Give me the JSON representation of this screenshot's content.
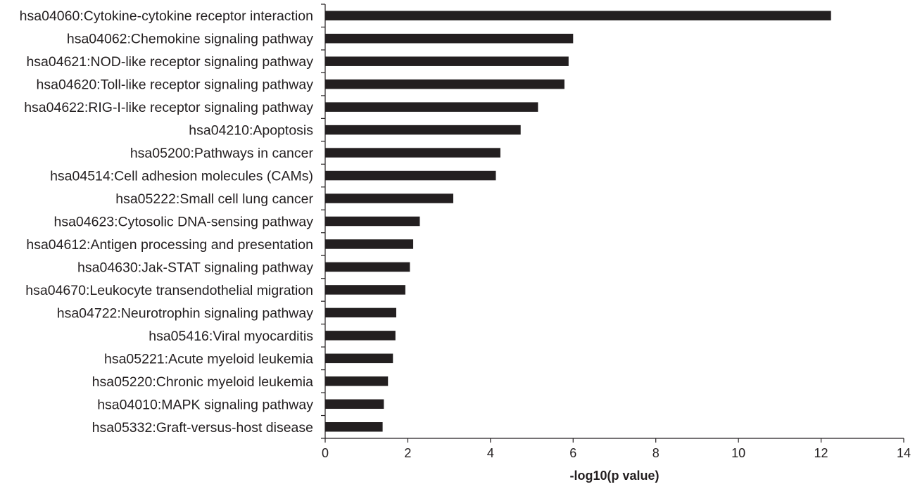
{
  "chart_data": {
    "type": "bar",
    "orientation": "horizontal",
    "categories": [
      "hsa04060:Cytokine-cytokine receptor interaction",
      "hsa04062:Chemokine signaling pathway",
      "hsa04621:NOD-like receptor signaling pathway",
      "hsa04620:Toll-like receptor signaling pathway",
      "hsa04622:RIG-I-like receptor signaling pathway",
      "hsa04210:Apoptosis",
      "hsa05200:Pathways in cancer",
      "hsa04514:Cell adhesion molecules (CAMs)",
      "hsa05222:Small cell lung cancer",
      "hsa04623:Cytosolic DNA-sensing pathway",
      "hsa04612:Antigen processing and presentation",
      "hsa04630:Jak-STAT signaling pathway",
      "hsa04670:Leukocyte transendothelial migration",
      "hsa04722:Neurotrophin signaling pathway",
      "hsa05416:Viral myocarditis",
      "hsa05221:Acute myeloid leukemia",
      "hsa05220:Chronic myeloid leukemia",
      "hsa04010:MAPK signaling pathway",
      "hsa05332:Graft-versus-host disease"
    ],
    "values": [
      12.24,
      6.0,
      5.89,
      5.79,
      5.15,
      4.73,
      4.24,
      4.13,
      3.1,
      2.29,
      2.13,
      2.05,
      1.94,
      1.72,
      1.7,
      1.64,
      1.52,
      1.42,
      1.39
    ],
    "xlabel": "-log10(p value)",
    "ylabel": "",
    "title": "",
    "xlim": [
      0,
      14
    ],
    "xticks": [
      "0",
      "2",
      "4",
      "6",
      "8",
      "10",
      "12",
      "14"
    ],
    "grid": false,
    "legend": "none",
    "bar_color": "#231f20",
    "axis_color": "#231f20"
  }
}
